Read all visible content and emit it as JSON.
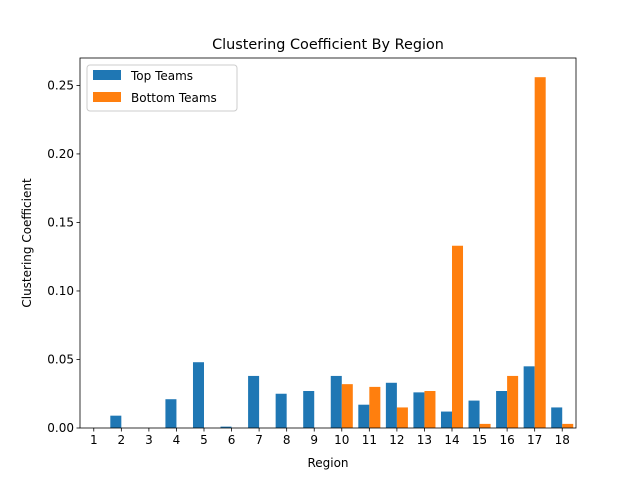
{
  "chart_data": {
    "type": "bar",
    "title": "Clustering Coefficient By Region",
    "xlabel": "Region",
    "ylabel": "Clustering Coefficient",
    "categories": [
      "1",
      "2",
      "3",
      "4",
      "5",
      "6",
      "7",
      "8",
      "9",
      "10",
      "11",
      "12",
      "13",
      "14",
      "15",
      "16",
      "17",
      "18"
    ],
    "series": [
      {
        "name": "Top Teams",
        "color": "#1f77b4",
        "values": [
          0,
          0.009,
          0,
          0.021,
          0.048,
          0.001,
          0.038,
          0.025,
          0.027,
          0.038,
          0.017,
          0.033,
          0.026,
          0.012,
          0.02,
          0.027,
          0.045,
          0.015
        ]
      },
      {
        "name": "Bottom Teams",
        "color": "#ff7f0e",
        "values": [
          0,
          0,
          0,
          0,
          0,
          0,
          0,
          0,
          0,
          0.032,
          0.03,
          0.015,
          0.027,
          0.133,
          0.003,
          0.038,
          0.256,
          0.003
        ]
      }
    ],
    "ylim": [
      0,
      0.27
    ],
    "yticks": [
      0,
      0.05,
      0.1,
      0.15,
      0.2,
      0.25
    ],
    "ytick_labels": [
      "0.00",
      "0.05",
      "0.10",
      "0.15",
      "0.20",
      "0.25"
    ],
    "grid": false,
    "legend_position": "top-left"
  }
}
